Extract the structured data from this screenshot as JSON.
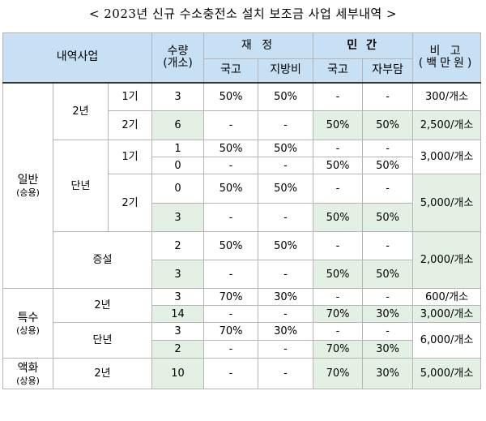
{
  "title": "< 2023년 신규 수소충전소 설치 보조금 사업 세부내역 >",
  "header": {
    "item": "내역사업",
    "qty_line1": "수량",
    "qty_line2": "(개소)",
    "finance": "재 정",
    "private": "민 간",
    "remark": "비 고",
    "national": "국고",
    "local": "지방비",
    "national2": "국고",
    "self": "자부담",
    "unit": "(백만원)"
  },
  "categories": {
    "general": "일반",
    "general_sub": "(승용)",
    "special": "특수",
    "special_sub": "(상용)",
    "liquid": "액화",
    "liquid_sub": "(상용)"
  },
  "subcats": {
    "two_year": "2년",
    "single_year": "단년",
    "expansion": "증설",
    "phase1": "1기",
    "phase2": "2기",
    "special_two_year": "2년",
    "special_single_year": "단년",
    "liquid_two_year": "2년"
  },
  "rows": [
    {
      "qty": "3",
      "nat": "50%",
      "loc": "50%",
      "pnat": "-",
      "self": "-",
      "remark": "300/개소"
    },
    {
      "qty": "6",
      "nat": "-",
      "loc": "-",
      "pnat": "50%",
      "self": "50%",
      "remark": "2,500/개소"
    },
    {
      "qty": "1",
      "nat": "50%",
      "loc": "50%",
      "pnat": "-",
      "self": "-",
      "remark": "3,000/개소"
    },
    {
      "qty": "0",
      "nat": "-",
      "loc": "-",
      "pnat": "50%",
      "self": "50%"
    },
    {
      "qty": "0",
      "nat": "50%",
      "loc": "50%",
      "pnat": "-",
      "self": "-",
      "remark": "5,000/개소"
    },
    {
      "qty": "3",
      "nat": "-",
      "loc": "-",
      "pnat": "50%",
      "self": "50%"
    },
    {
      "qty": "2",
      "nat": "50%",
      "loc": "50%",
      "pnat": "-",
      "self": "-",
      "remark": "2,000/개소"
    },
    {
      "qty": "3",
      "nat": "-",
      "loc": "-",
      "pnat": "50%",
      "self": "50%"
    },
    {
      "qty": "3",
      "nat": "70%",
      "loc": "30%",
      "pnat": "-",
      "self": "-",
      "remark": "600/개소"
    },
    {
      "qty": "14",
      "nat": "-",
      "loc": "-",
      "pnat": "70%",
      "self": "30%",
      "remark": "3,000/개소"
    },
    {
      "qty": "3",
      "nat": "70%",
      "loc": "30%",
      "pnat": "-",
      "self": "-",
      "remark": "6,000/개소"
    },
    {
      "qty": "2",
      "nat": "-",
      "loc": "-",
      "pnat": "70%",
      "self": "30%"
    },
    {
      "qty": "10",
      "nat": "-",
      "loc": "-",
      "pnat": "70%",
      "self": "30%",
      "remark": "5,000/개소"
    }
  ]
}
